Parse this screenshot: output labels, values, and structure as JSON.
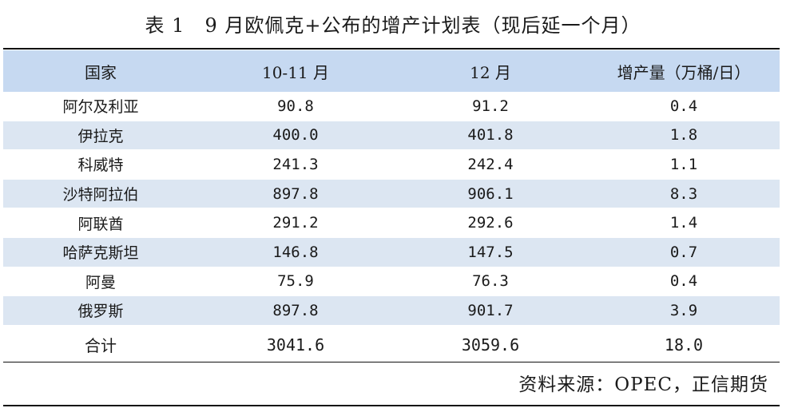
{
  "caption": "表 1　9 月欧佩克+公布的增产计划表（现后延一个月）",
  "table": {
    "headers": [
      "国家",
      "10-11 月",
      "12 月",
      "增产量（万桶/日）"
    ],
    "rows": [
      [
        "阿尔及利亚",
        "90.8",
        "91.2",
        "0.4"
      ],
      [
        "伊拉克",
        "400.0",
        "401.8",
        "1.8"
      ],
      [
        "科威特",
        "241.3",
        "242.4",
        "1.1"
      ],
      [
        "沙特阿拉伯",
        "897.8",
        "906.1",
        "8.3"
      ],
      [
        "阿联酋",
        "291.2",
        "292.6",
        "1.4"
      ],
      [
        "哈萨克斯坦",
        "146.8",
        "147.5",
        "0.7"
      ],
      [
        "阿曼",
        "75.9",
        "76.3",
        "0.4"
      ],
      [
        "俄罗斯",
        "897.8",
        "901.7",
        "3.9"
      ]
    ],
    "total": [
      "合计",
      "3041.6",
      "3059.6",
      "18.0"
    ]
  },
  "source": "资料来源：OPEC，正信期货",
  "colors": {
    "header_bg": "#c6d9f1",
    "alt_row_bg": "#dce6f2"
  }
}
